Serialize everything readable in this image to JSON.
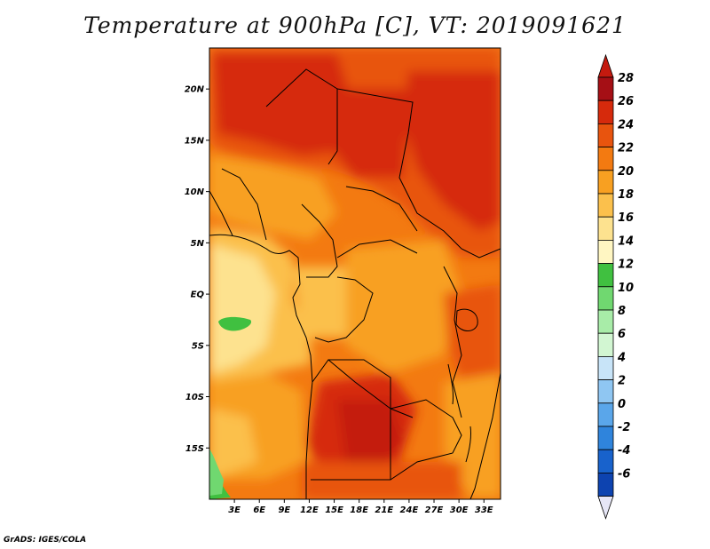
{
  "title": "Temperature at 900hPa [C], VT: 2019091621",
  "credit": "GrADS: IGES/COLA",
  "map": {
    "lon_range": [
      0,
      35
    ],
    "lat_range": [
      -20,
      24
    ],
    "lon_ticks": [
      {
        "value": 3,
        "label": "3E"
      },
      {
        "value": 6,
        "label": "6E"
      },
      {
        "value": 9,
        "label": "9E"
      },
      {
        "value": 12,
        "label": "12E"
      },
      {
        "value": 15,
        "label": "15E"
      },
      {
        "value": 18,
        "label": "18E"
      },
      {
        "value": 21,
        "label": "21E"
      },
      {
        "value": 24,
        "label": "24E"
      },
      {
        "value": 27,
        "label": "27E"
      },
      {
        "value": 30,
        "label": "30E"
      },
      {
        "value": 33,
        "label": "33E"
      }
    ],
    "lat_ticks": [
      {
        "value": 20,
        "label": "20N"
      },
      {
        "value": 15,
        "label": "15N"
      },
      {
        "value": 10,
        "label": "10N"
      },
      {
        "value": 5,
        "label": "5N"
      },
      {
        "value": 0,
        "label": "EQ"
      },
      {
        "value": -5,
        "label": "5S"
      },
      {
        "value": -10,
        "label": "10S"
      },
      {
        "value": -15,
        "label": "15S"
      }
    ]
  },
  "colorbar": {
    "levels": [
      "28",
      "26",
      "24",
      "22",
      "20",
      "18",
      "16",
      "14",
      "12",
      "10",
      "8",
      "6",
      "4",
      "2",
      "0",
      "-2",
      "-4",
      "-6"
    ],
    "colors": [
      "#a50f15",
      "#d62a0c",
      "#e8540e",
      "#f37a11",
      "#f8a021",
      "#fbc04c",
      "#fde28f",
      "#fff6c2",
      "#40c040",
      "#70d870",
      "#a8eca8",
      "#d2f6d2",
      "#c8e4f8",
      "#8fc6f2",
      "#5aa6ea",
      "#2f84dc",
      "#1862cc",
      "#0d43b0",
      "#082a80"
    ],
    "top_triangle": "#c41a0f",
    "bottom_triangle": "#e6e6f6"
  },
  "colors": {
    "background": "#ffffff",
    "border": "#e8501a",
    "sea_cool": "#fde8a0",
    "land_hot": "#d83a14"
  }
}
